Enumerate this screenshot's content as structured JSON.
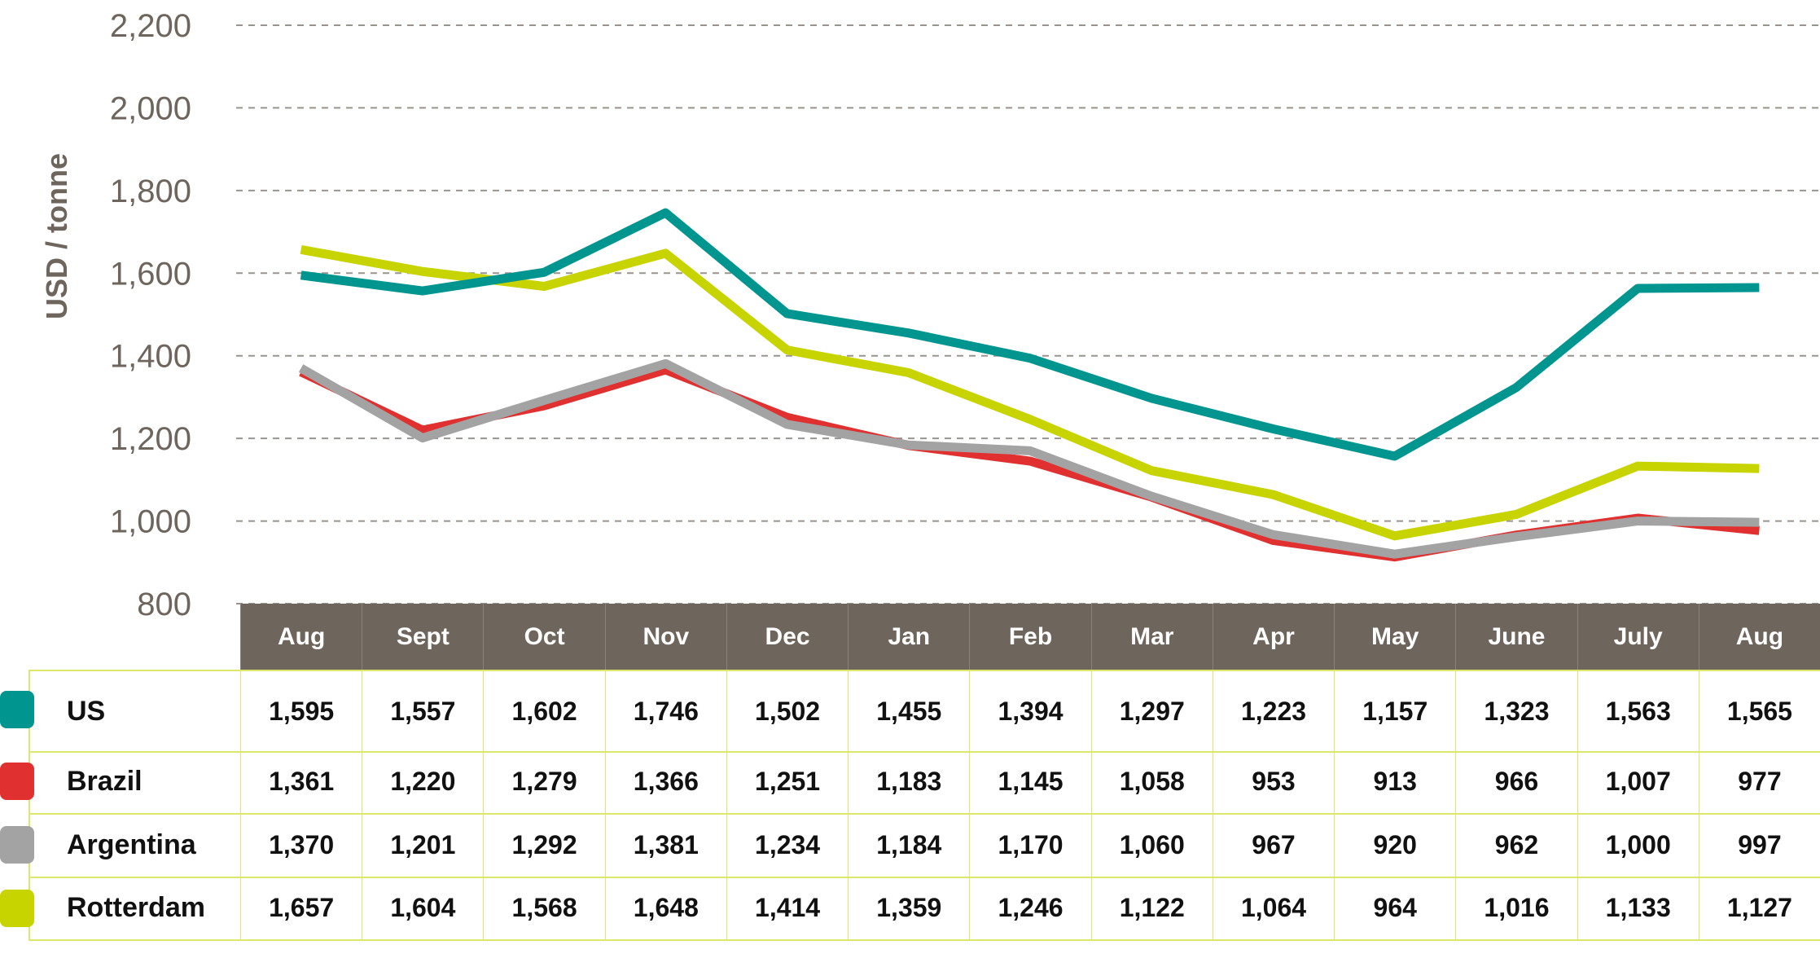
{
  "chart_data": {
    "type": "line",
    "ylabel": "USD / tonne",
    "xlabel": "",
    "ylim": [
      800,
      2200
    ],
    "yticks": [
      "800",
      "1,000",
      "1,200",
      "1,400",
      "1,600",
      "1,800",
      "2,000",
      "2,200"
    ],
    "ytick_values": [
      800,
      1000,
      1200,
      1400,
      1600,
      1800,
      2000,
      2200
    ],
    "grid": true,
    "categories": [
      "Aug",
      "Sept",
      "Oct",
      "Nov",
      "Dec",
      "Jan",
      "Feb",
      "Mar",
      "Apr",
      "May",
      "June",
      "July",
      "Aug"
    ],
    "series": [
      {
        "name": "US",
        "color": "#00968f",
        "values": [
          1595,
          1557,
          1602,
          1746,
          1502,
          1455,
          1394,
          1297,
          1223,
          1157,
          1323,
          1563,
          1565
        ],
        "labels": [
          "1,595",
          "1,557",
          "1,602",
          "1,746",
          "1,502",
          "1,455",
          "1,394",
          "1,297",
          "1,223",
          "1,157",
          "1,323",
          "1,563",
          "1,565"
        ]
      },
      {
        "name": "Brazil",
        "color": "#e03030",
        "values": [
          1361,
          1220,
          1279,
          1366,
          1251,
          1183,
          1145,
          1058,
          953,
          913,
          966,
          1007,
          977
        ],
        "labels": [
          "1,361",
          "1,220",
          "1,279",
          "1,366",
          "1,251",
          "1,183",
          "1,145",
          "1,058",
          "953",
          "913",
          "966",
          "1,007",
          "977"
        ]
      },
      {
        "name": "Argentina",
        "color": "#a3a3a3",
        "values": [
          1370,
          1201,
          1292,
          1381,
          1234,
          1184,
          1170,
          1060,
          967,
          920,
          962,
          1000,
          997
        ],
        "labels": [
          "1,370",
          "1,201",
          "1,292",
          "1,381",
          "1,234",
          "1,184",
          "1,170",
          "1,060",
          "967",
          "920",
          "962",
          "1,000",
          "997"
        ]
      },
      {
        "name": "Rotterdam",
        "color": "#c8d400",
        "values": [
          1657,
          1604,
          1568,
          1648,
          1414,
          1359,
          1246,
          1122,
          1064,
          964,
          1016,
          1133,
          1127
        ],
        "labels": [
          "1,657",
          "1,604",
          "1,568",
          "1,648",
          "1,414",
          "1,359",
          "1,246",
          "1,122",
          "1,064",
          "964",
          "1,016",
          "1,133",
          "1,127"
        ]
      }
    ],
    "legend": "table-bottom"
  }
}
